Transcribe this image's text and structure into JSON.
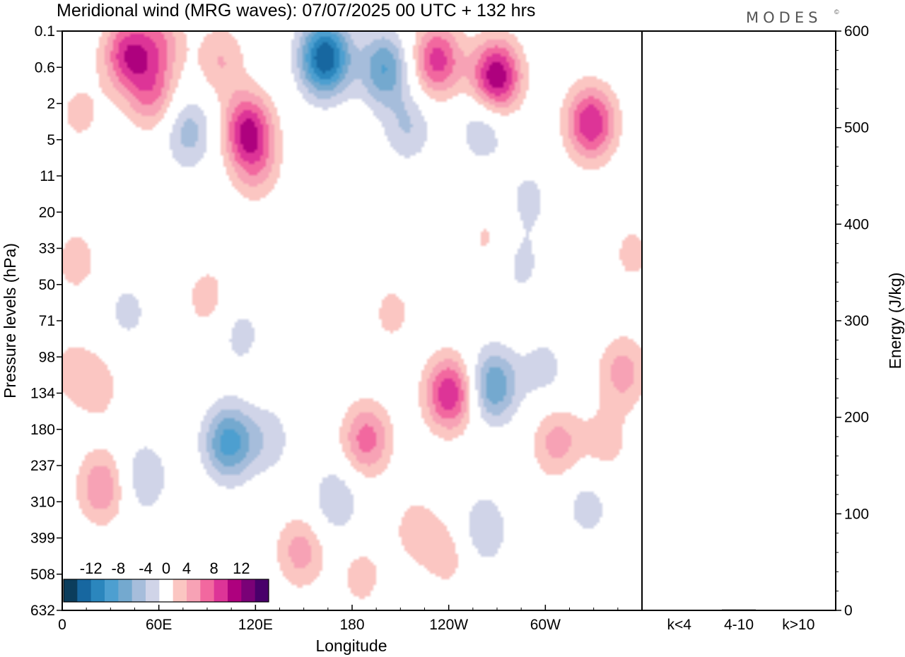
{
  "title": "Meridional wind (MRG waves):  07/07/2025  00 UTC  + 132 hrs",
  "brand": "MODES",
  "brand_mark": "©",
  "chart_data": [
    {
      "type": "heatmap",
      "title": "Meridional wind (MRG waves):  07/07/2025  00 UTC  + 132 hrs",
      "xlabel": "Longitude",
      "ylabel": "Pressure levels (hPa)",
      "x_ticks": [
        "0",
        "60E",
        "120E",
        "180",
        "120W",
        "60W"
      ],
      "x_tick_degrees": [
        0,
        60,
        120,
        180,
        240,
        300
      ],
      "xlim_degrees": [
        0,
        360
      ],
      "y_ticks": [
        "0.1",
        "0.6",
        "2",
        "5",
        "11",
        "20",
        "33",
        "50",
        "71",
        "98",
        "134",
        "180",
        "237",
        "310",
        "399",
        "508",
        "632"
      ],
      "colorbar": {
        "labels": [
          "-12",
          "-8",
          "-4",
          "0",
          "4",
          "8",
          "12"
        ],
        "label_values": [
          -12,
          -8,
          -4,
          0,
          4,
          8,
          12
        ],
        "levels": [
          -14,
          -12,
          -10,
          -8,
          -6,
          -4,
          -2,
          2,
          4,
          6,
          8,
          10,
          12,
          14
        ],
        "colors": [
          "#0b3d5c",
          "#1767a0",
          "#2b86bd",
          "#4d9fd0",
          "#74a9cf",
          "#a6bddb",
          "#d0d4e8",
          "#ffffff",
          "#fbc6c2",
          "#f7a2b5",
          "#f2689f",
          "#dd3497",
          "#ae017e",
          "#7a0177",
          "#49006a"
        ]
      },
      "blobs": [
        {
          "lon": 163,
          "p": 0.35,
          "v": -14
        },
        {
          "lon": 200,
          "p": 0.6,
          "v": -8
        },
        {
          "lon": 215,
          "p": 3.5,
          "v": -4
        },
        {
          "lon": 262,
          "p": 3.5,
          "v": -4
        },
        {
          "lon": 233,
          "p": 0.4,
          "v": 9
        },
        {
          "lon": 270,
          "p": 0.8,
          "v": 12
        },
        {
          "lon": 329,
          "p": 3.2,
          "v": 10
        },
        {
          "lon": 40,
          "p": 0.3,
          "v": 9
        },
        {
          "lon": 60,
          "p": 0.15,
          "v": 5
        },
        {
          "lon": 55,
          "p": 1.4,
          "v": 6
        },
        {
          "lon": 98,
          "p": 0.4,
          "v": 4
        },
        {
          "lon": 115,
          "p": 3.8,
          "v": 10
        },
        {
          "lon": 120,
          "p": 9.0,
          "v": 4
        },
        {
          "lon": 78,
          "p": 4.0,
          "v": -5
        },
        {
          "lon": 103,
          "p": 200,
          "v": -9
        },
        {
          "lon": 128,
          "p": 195,
          "v": -3
        },
        {
          "lon": 170,
          "p": 310,
          "v": -4
        },
        {
          "lon": 189,
          "p": 195,
          "v": 7
        },
        {
          "lon": 148,
          "p": 440,
          "v": 5
        },
        {
          "lon": 24,
          "p": 280,
          "v": 6
        },
        {
          "lon": 50,
          "p": 260,
          "v": -4
        },
        {
          "lon": 241,
          "p": 135,
          "v": 10
        },
        {
          "lon": 268,
          "p": 126,
          "v": -8
        },
        {
          "lon": 308,
          "p": 200,
          "v": 5
        },
        {
          "lon": 338,
          "p": 200,
          "v": 3
        },
        {
          "lon": 240,
          "p": 450,
          "v": 3
        },
        {
          "lon": 262,
          "p": 380,
          "v": -4
        },
        {
          "lon": 327,
          "p": 320,
          "v": -3
        },
        {
          "lon": 349,
          "p": 112,
          "v": 5
        },
        {
          "lon": 300,
          "p": 110,
          "v": -2.8
        },
        {
          "lon": 186,
          "p": 520,
          "v": 2.8
        },
        {
          "lon": 220,
          "p": 380,
          "v": 3
        },
        {
          "lon": 290,
          "p": 16,
          "v": -2.6
        },
        {
          "lon": 8,
          "p": 38,
          "v": 3
        },
        {
          "lon": 90,
          "p": 57,
          "v": 3
        },
        {
          "lon": 205,
          "p": 66,
          "v": 2.6
        },
        {
          "lon": 40,
          "p": 65,
          "v": -2.6
        },
        {
          "lon": 110,
          "p": 80,
          "v": -2.8
        },
        {
          "lon": 22,
          "p": 128,
          "v": 2.8
        },
        {
          "lon": 5,
          "p": 110,
          "v": 2.6
        },
        {
          "lon": 285,
          "p": 40,
          "v": -2.6
        },
        {
          "lon": 355,
          "p": 35,
          "v": 2.6
        },
        {
          "lon": 10,
          "p": 2.5,
          "v": 2.6
        },
        {
          "lon": 265,
          "p": 29,
          "v": 2.4
        }
      ]
    },
    {
      "type": "bar",
      "categories": [
        "k<4",
        "4-10",
        "k>10"
      ],
      "values": [
        0.5,
        1.0,
        0.3
      ],
      "ylabel": "Energy (J/kg)",
      "ylim": [
        0,
        600
      ],
      "y_ticks": [
        "0",
        "100",
        "200",
        "300",
        "400",
        "500",
        "600"
      ]
    }
  ]
}
